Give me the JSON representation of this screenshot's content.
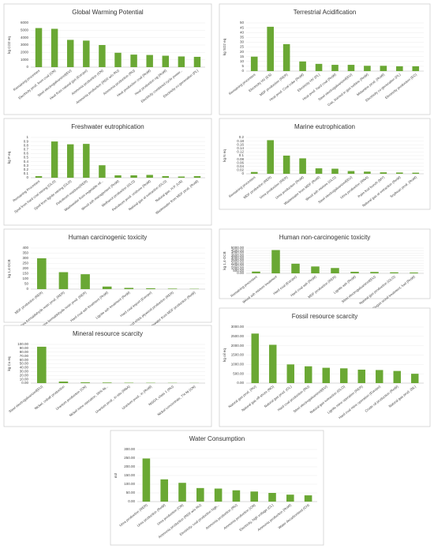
{
  "chart_data": [
    {
      "type": "bar",
      "title": "Global Warming Potential",
      "y_label": "kg CO2 eq",
      "color": "#6aa834",
      "grid": true,
      "categories": [
        "Remaining processes",
        "Electricity prod. from coal (CN)",
        "Steel electrogalvanized(EU)",
        "Heat from natural gas (Europe)",
        "Ammonia production (CN)",
        "Ammonia production (RER w/o RU)",
        "Ammonia production (RU)",
        "Heat production coal (RoW)",
        "Heat production ng (RoW)",
        "Electricity combined cycle power...",
        "Electricity co-generation (PL)"
      ],
      "values": [
        5300,
        5200,
        3700,
        3600,
        3000,
        1950,
        1700,
        1650,
        1550,
        1450,
        1400
      ],
      "ylim": [
        0,
        6000
      ],
      "yticks": [
        0,
        1000,
        2000,
        3000,
        4000,
        5000,
        6000
      ]
    },
    {
      "type": "bar",
      "title": "Terrestrial Acidification",
      "y_label": "kg SO2 eq",
      "color": "#6aa834",
      "grid": true,
      "categories": [
        "Remaining processes",
        "Electricity HV (ES)",
        "MDF production (RER)",
        "Heat prod. Coal coke (RoW)",
        "Electricity HV (PL)",
        "Heat prod. hard coal (RoW)",
        "Steel electrogalvanized(EU)",
        "Gas, burned in gas turbine (RoW)",
        "Melamine prod. (RoW)",
        "Electricity co-generation (PL)",
        "Electricity production (EC)"
      ],
      "values": [
        15,
        46,
        28,
        10,
        7.5,
        6.5,
        6.5,
        5.5,
        5.5,
        5,
        5
      ],
      "ylim": [
        0,
        50
      ],
      "yticks": [
        0,
        5,
        10,
        15,
        20,
        25,
        30,
        35,
        40,
        45,
        50
      ]
    },
    {
      "type": "bar",
      "title": "Freshwater eutrophication",
      "y_label": "kg P eq",
      "color": "#6aa834",
      "grid": true,
      "categories": [
        "Remaining Processes",
        "Spoil from hard coal mining (GLO)",
        "Spoil from lignite mining (GLO)",
        "Petroleum residues(RER)",
        "Wastewater from vegetable oil...",
        "Wood ash management (RoW)",
        "Methanol production (GLO)",
        "Petroleum prod. onshore (RoW)",
        "Natural gas at extraction (GLO)",
        "Natural gas, H.P. (US)",
        "Wastewater from MDF prod. (RoW)"
      ],
      "values": [
        0.04,
        0.9,
        0.83,
        0.84,
        0.31,
        0.06,
        0.06,
        0.07,
        0.04,
        0.03,
        0.04
      ],
      "ylim": [
        0,
        1
      ],
      "yticks": [
        0,
        0.1,
        0.2,
        0.3,
        0.4,
        0.5,
        0.6,
        0.7,
        0.8,
        0.9,
        1
      ]
    },
    {
      "type": "bar",
      "title": "Marine eutrophication",
      "y_label": "kg N eq",
      "color": "#6aa834",
      "grid": true,
      "categories": [
        "Remaining processes",
        "MDF production (RER)",
        "Urea production (RER)",
        "Urea production (RoW)",
        "Wastewater from MDF (RoW)",
        "Wood ash mixture (GLO)",
        "Steel electrogalvanized(EU)",
        "Urea production (RNA)",
        "Palm fruit bunch (MY)",
        "Natural gas at extraction (RoW)",
        "Soybean prod. (RoW)"
      ],
      "values": [
        0.01,
        0.185,
        0.1,
        0.085,
        0.03,
        0.028,
        0.015,
        0.012,
        0.008,
        0.007,
        0.006
      ],
      "ylim": [
        0,
        0.2
      ],
      "yticks": [
        0,
        0.02,
        0.04,
        0.06,
        0.08,
        0.1,
        0.12,
        0.14,
        0.16,
        0.18,
        0.2
      ]
    },
    {
      "type": "bar",
      "title": "Human carcinogenic toxicity",
      "y_label": "kg 1,4-DCB",
      "color": "#6aa834",
      "grid": true,
      "categories": [
        "MDF production (RER)",
        "Urea formaldehyde resin prod. (RER)",
        "Melamine formaldehyde resin prod. (RER)",
        "Hard coal ash treatment (RoW)",
        "Lignite ash treatment (RoW)",
        "Hard coal import (Europe)",
        "Wood chips plywood production (RER)",
        "Wastewater from MDF production (RoW)"
      ],
      "values": [
        300,
        165,
        145,
        25,
        12,
        8,
        5,
        3
      ],
      "ylim": [
        0,
        400
      ],
      "yticks": [
        0,
        50,
        100,
        150,
        200,
        250,
        300,
        350,
        400
      ]
    },
    {
      "type": "bar",
      "title": "Human non-carcinogenic toxicity",
      "y_label": "kg 1,4-DCB",
      "color": "#6aa834",
      "grid": true,
      "categories": [
        "Remaining processes",
        "Wood ash mixture treatment",
        "Hard coal (Europe)",
        "Hard coal ash (RoW)",
        "MDF production (RER)",
        "Lignite ash (RoW)",
        "Steel electrogalvanized(EU)",
        "Natural gas production (GLO)",
        "Biogas wood treatment, fuel (RoW)"
      ],
      "values": [
        350,
        4600,
        1900,
        1350,
        1050,
        300,
        270,
        200,
        160
      ],
      "ylim": [
        0,
        5000
      ],
      "yticks": [
        {
          "value": 0,
          "label": "0.00"
        },
        {
          "value": 500,
          "label": "500.00"
        },
        {
          "value": 1000,
          "label": "1000.00"
        },
        {
          "value": 1500,
          "label": "1500.00"
        },
        {
          "value": 2000,
          "label": "2000.00"
        },
        {
          "value": 2500,
          "label": "2500.00"
        },
        {
          "value": 3000,
          "label": "3000.00"
        },
        {
          "value": 3500,
          "label": "3500.00"
        },
        {
          "value": 4000,
          "label": "4000.00"
        },
        {
          "value": 4500,
          "label": "4500.00"
        },
        {
          "value": 5000,
          "label": "5000.00"
        }
      ]
    },
    {
      "type": "bar",
      "title": "Mineral resource scarcity",
      "y_label": "kg Cu eq",
      "color": "#6aa834",
      "grid": true,
      "categories": [
        "Steel electrogalvanized(EU)",
        "Nickel, cobalt production",
        "Uranium production (CN)",
        "Nickel mine operation, 99% Ni...",
        "Uranium prod., in-situ (RNA)",
        "Uranium prod., in (RoW)",
        "NiSO4, class 1 (RU)",
        "Nickel concentrate, 7% Ni (CN)"
      ],
      "values": [
        94,
        4,
        2,
        1.5,
        1,
        0.8,
        0.6,
        0.4
      ],
      "ylim": [
        0,
        100
      ],
      "yticks": [
        {
          "value": 0,
          "label": "0.00"
        },
        {
          "value": 10,
          "label": "10.00"
        },
        {
          "value": 20,
          "label": "20.00"
        },
        {
          "value": 30,
          "label": "30.00"
        },
        {
          "value": 40,
          "label": "40.00"
        },
        {
          "value": 50,
          "label": "50.00"
        },
        {
          "value": 60,
          "label": "60.00"
        },
        {
          "value": 70,
          "label": "70.00"
        },
        {
          "value": 80,
          "label": "80.00"
        },
        {
          "value": 90,
          "label": "90.00"
        },
        {
          "value": 100,
          "label": "100.00"
        }
      ]
    },
    {
      "type": "bar",
      "title": "Fossil resource scarcity",
      "y_label": "kg oil eq",
      "color": "#6aa834",
      "grid": true,
      "categories": [
        "Natural gas prod. (RU)",
        "Natural gas off-shore (NO)",
        "Natural gas prod. (GL)",
        "Hard coal production (RU)",
        "Steel electrogalvanized(EU)",
        "Natural gas extraction (GLO)",
        "Lignite mine operation (RER)",
        "Hard coal mine operation (Europe)",
        "Crude oil production (RoW)",
        "Natural gas prod. (NL)"
      ],
      "values": [
        2650,
        2050,
        1000,
        900,
        820,
        790,
        720,
        700,
        650,
        500
      ],
      "ylim": [
        0,
        3000
      ],
      "yticks": [
        {
          "value": 0,
          "label": "0.00"
        },
        {
          "value": 500,
          "label": "500.00"
        },
        {
          "value": 1000,
          "label": "1000.00"
        },
        {
          "value": 1500,
          "label": "1500.00"
        },
        {
          "value": 2000,
          "label": "2000.00"
        },
        {
          "value": 2500,
          "label": "2500.00"
        },
        {
          "value": 3000,
          "label": "3000.00"
        }
      ]
    },
    {
      "type": "bar",
      "title": "Water Consumption",
      "y_label": "m3",
      "color": "#6aa834",
      "grid": true,
      "categories": [
        "Urea production (RER)",
        "Urea production (RoW)",
        "Urea production (CN)",
        "Ammonia production (RER w/o RU)",
        "Electricity, coal production high...",
        "Ammonia production (RU)",
        "Ammonia production (CN)",
        "Electricity, high voltage (CL)",
        "Ammonia production (RoW)",
        "Water decarbonised (CH)"
      ],
      "values": [
        248,
        128,
        108,
        78,
        75,
        65,
        58,
        50,
        40,
        36
      ],
      "ylim": [
        0,
        300
      ],
      "yticks": [
        {
          "value": 0,
          "label": "0.00"
        },
        {
          "value": 50,
          "label": "50.00"
        },
        {
          "value": 100,
          "label": "100.00"
        },
        {
          "value": 150,
          "label": "150.00"
        },
        {
          "value": 200,
          "label": "200.00"
        },
        {
          "value": 250,
          "label": "250.00"
        },
        {
          "value": 300,
          "label": "300.00"
        }
      ]
    }
  ]
}
